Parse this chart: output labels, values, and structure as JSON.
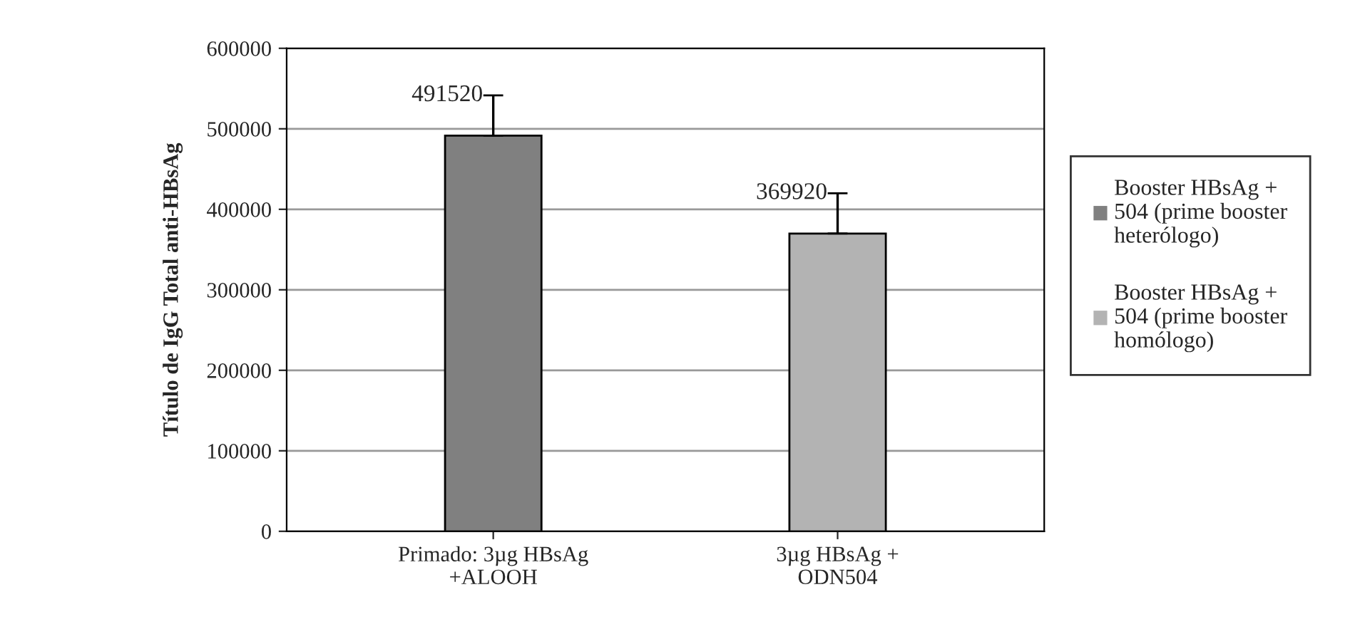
{
  "chart_data": {
    "type": "bar",
    "ylabel": "Título de IgG Total anti-HBsAg",
    "categories": [
      "Primado: 3µg HBsAg\n+ALOOH",
      "3µg HBsAg +\nODN504"
    ],
    "series": [
      {
        "name": "Booster HBsAg +\n504 (prime booster\nheterólogo)",
        "color": "#808080",
        "values": [
          491520,
          null
        ],
        "errors": [
          [
            491520,
            541520
          ],
          null
        ]
      },
      {
        "name": "Booster HBsAg +\n504 (prime booster\nhomólogo)",
        "color": "#b3b3b3",
        "values": [
          null,
          369920
        ],
        "errors": [
          null,
          [
            369920,
            419920
          ]
        ]
      }
    ],
    "ylim": [
      0,
      600000
    ],
    "yticks": [
      0,
      100000,
      200000,
      300000,
      400000,
      500000,
      600000
    ],
    "grid": "y",
    "legend": "right",
    "data_labels": true
  }
}
